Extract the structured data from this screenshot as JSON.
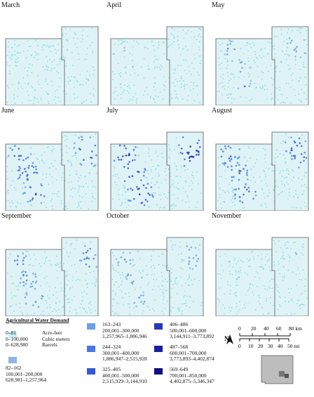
{
  "map_title": "Agricultural Water Demand",
  "panels": [
    {
      "month": "March",
      "level": 0
    },
    {
      "month": "April",
      "level": 1
    },
    {
      "month": "May",
      "level": 3
    },
    {
      "month": "June",
      "level": 5
    },
    {
      "month": "July",
      "level": 6
    },
    {
      "month": "August",
      "level": 5
    },
    {
      "month": "September",
      "level": 4
    },
    {
      "month": "October",
      "level": 3
    },
    {
      "month": "November",
      "level": 1
    }
  ],
  "legend": {
    "units": [
      "Acre-feet",
      "Cubic meters",
      "Barrels"
    ],
    "classes": [
      {
        "acre_feet": "0–81",
        "cubic_meters": "0–100,000",
        "barrels": "0–628,980",
        "color": "#c8ecf2"
      },
      {
        "acre_feet": "82–162",
        "cubic_meters": "100,001–200,000",
        "barrels": "628,981–1,257,964",
        "color": "#8fb4e6"
      },
      {
        "acre_feet": "163–243",
        "cubic_meters": "200,001–300,000",
        "barrels": "1,257,965–1,886,946",
        "color": "#6e9ee8"
      },
      {
        "acre_feet": "244–324",
        "cubic_meters": "300,001–400,000",
        "barrels": "1,886,947–2,515,928",
        "color": "#4a78e2"
      },
      {
        "acre_feet": "325–405",
        "cubic_meters": "400,001–500,000",
        "barrels": "2,515,929–3,144,910",
        "color": "#3358d6"
      },
      {
        "acre_feet": "406–486",
        "cubic_meters": "500,001–600,000",
        "barrels": "3,144,911–3,773,892",
        "color": "#2538b8"
      },
      {
        "acre_feet": "487–568",
        "cubic_meters": "600,001–700,000",
        "barrels": "3,773,893–4,402,874",
        "color": "#1a1fa0"
      },
      {
        "acre_feet": "569–649",
        "cubic_meters": "700,001–850,000",
        "barrels": "4,402,875–5,346,347",
        "color": "#0d0d80"
      }
    ]
  },
  "scale_bar": {
    "km_labels": [
      "0",
      "20",
      "40",
      "60",
      "80 km"
    ],
    "mi_labels": [
      "0",
      "10",
      "20",
      "30",
      "40",
      "50 mi"
    ]
  },
  "north_arrow_label": "N",
  "colors": {
    "base_fill": "#dff3f6",
    "dot_light": "#7fd3e0",
    "boundary": "#555555"
  }
}
